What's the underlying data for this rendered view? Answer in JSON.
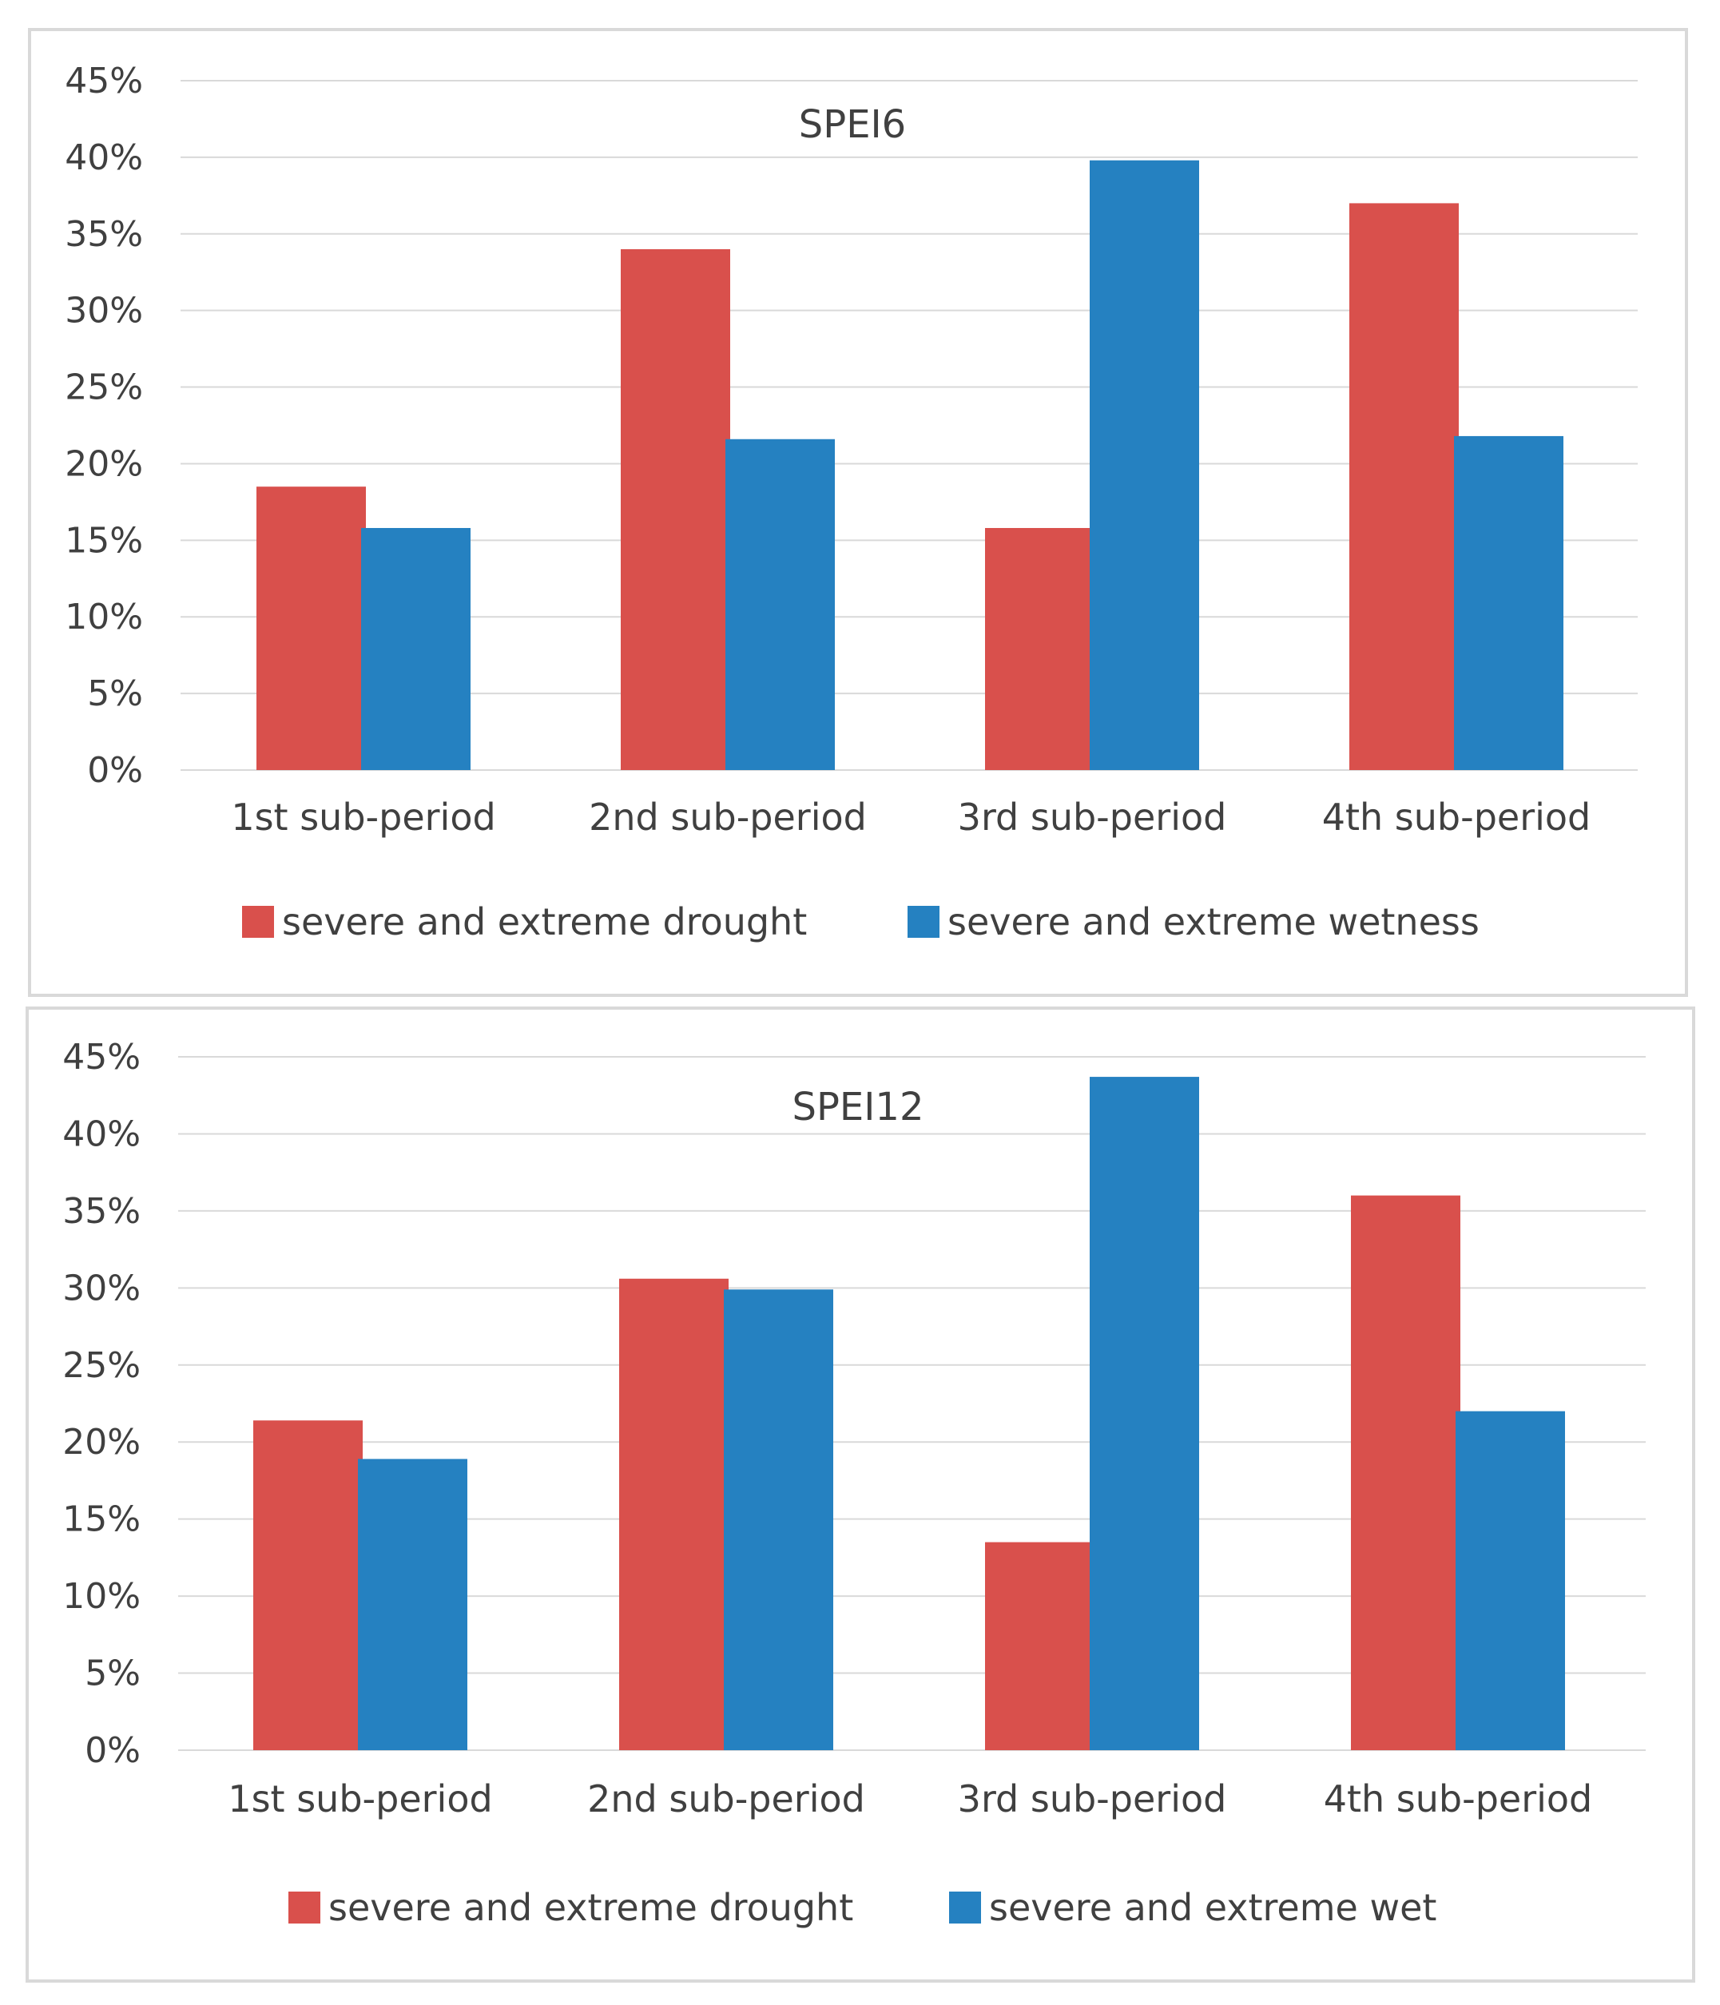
{
  "colors": {
    "drought": "#d9504c",
    "wet": "#2581c1",
    "grid": "#d9d9d9",
    "text": "#404040",
    "border": "#d9d9d9"
  },
  "chart_data": [
    {
      "type": "bar",
      "title": "SPEI6",
      "categories": [
        "1st sub-period",
        "2nd sub-period",
        "3rd sub-period",
        "4th sub-period"
      ],
      "series": [
        {
          "name": "severe and extreme drought",
          "color": "#d9504c",
          "values": [
            18.5,
            34.0,
            15.8,
            37.0
          ]
        },
        {
          "name": "severe and extreme wetness",
          "color": "#2581c1",
          "values": [
            15.8,
            21.6,
            39.8,
            21.8
          ]
        }
      ],
      "yticks": [
        "0%",
        "5%",
        "10%",
        "15%",
        "20%",
        "25%",
        "30%",
        "35%",
        "40%",
        "45%"
      ],
      "ylim": [
        0,
        45
      ],
      "xlabel": "",
      "ylabel": "",
      "grid": true,
      "legend": "bottom"
    },
    {
      "type": "bar",
      "title": "SPEI12",
      "categories": [
        "1st sub-period",
        "2nd sub-period",
        "3rd sub-period",
        "4th sub-period"
      ],
      "series": [
        {
          "name": "severe and extreme drought",
          "color": "#d9504c",
          "values": [
            21.4,
            30.6,
            13.5,
            36.0
          ]
        },
        {
          "name": "severe and extreme wet",
          "color": "#2581c1",
          "values": [
            18.9,
            29.9,
            43.7,
            22.0
          ]
        }
      ],
      "yticks": [
        "0%",
        "5%",
        "10%",
        "15%",
        "20%",
        "25%",
        "30%",
        "35%",
        "40%",
        "45%"
      ],
      "ylim": [
        0,
        45
      ],
      "xlabel": "",
      "ylabel": "",
      "grid": true,
      "legend": "bottom"
    }
  ]
}
